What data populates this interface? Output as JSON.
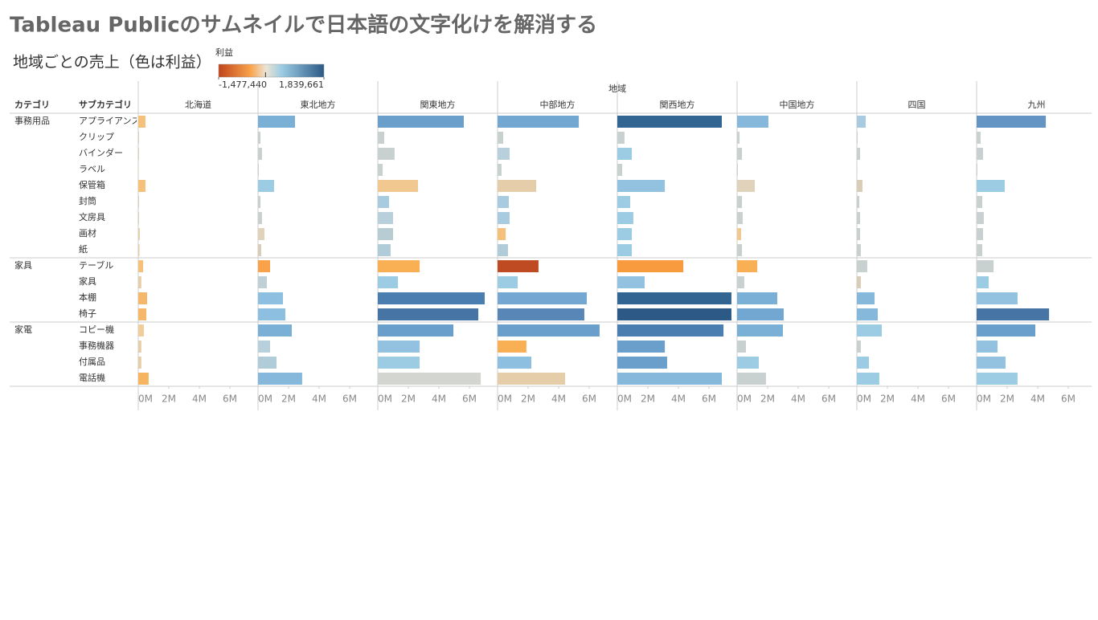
{
  "chart_data": {
    "type": "bar",
    "title": "Tableau Publicのサムネイルで日本語の文字化けを解消する",
    "subtitle": "地域ごとの売上（色は利益）",
    "column_header": "地域",
    "row_headers": [
      "カテゴリ",
      "サブカテゴリ"
    ],
    "color_legend": {
      "title": "利益",
      "range": [
        {
          "value": -1477440,
          "label": "-1,477,440"
        },
        {
          "value": 1839661,
          "label": "1,839,661"
        }
      ]
    },
    "category_groups": [
      {
        "name": "事務用品",
        "subcategories": [
          "アプライアンス",
          "クリップ",
          "バインダー",
          "ラベル",
          "保管箱",
          "封筒",
          "文房具",
          "画材",
          "紙"
        ]
      },
      {
        "name": "家具",
        "subcategories": [
          "テーブル",
          "家具",
          "本棚",
          "椅子"
        ]
      },
      {
        "name": "家電",
        "subcategories": [
          "コピー機",
          "事務機器",
          "付属品",
          "電話機"
        ]
      }
    ],
    "xlim": [
      0,
      7.84
    ],
    "xticks": [
      {
        "value": 0,
        "label": "0M"
      },
      {
        "value": 2,
        "label": "2M"
      },
      {
        "value": 4,
        "label": "4M"
      },
      {
        "value": 6,
        "label": "6M"
      }
    ],
    "series": [
      {
        "name": "北海道",
        "values": [
          0.47,
          0.05,
          0.05,
          0.03,
          0.47,
          0.05,
          0.05,
          0.1,
          0.08,
          0.32,
          0.2,
          0.58,
          0.53,
          0.37,
          0.2,
          0.2,
          0.68
        ],
        "colors": [
          "#f5c07a",
          "#d9cdb8",
          "#d9cdb8",
          "#d9cdb8",
          "#f5c07a",
          "#d9cdb8",
          "#d9cdb8",
          "#e6cda9",
          "#e6cda9",
          "#f5c07a",
          "#e6cda9",
          "#f5b86a",
          "#f5b86a",
          "#f0cd9a",
          "#e6cda9",
          "#e6cda9",
          "#f6b360"
        ]
      },
      {
        "name": "東北地方",
        "values": [
          2.42,
          0.16,
          0.26,
          0.05,
          1.05,
          0.16,
          0.26,
          0.42,
          0.21,
          0.79,
          0.58,
          1.63,
          1.79,
          2.21,
          0.79,
          1.21,
          2.89
        ],
        "colors": [
          "#7aafd6",
          "#c8d0d0",
          "#c8d0d0",
          "#c8d0d0",
          "#9ccbe4",
          "#c8d0d0",
          "#c8d0d0",
          "#e0d2bb",
          "#d9cdb8",
          "#f9a24a",
          "#bfcfd6",
          "#8dbfe0",
          "#8dbfe0",
          "#7aafd6",
          "#b8d0dc",
          "#b0ccd8",
          "#86b8dc"
        ]
      },
      {
        "name": "関東地方",
        "values": [
          5.63,
          0.42,
          1.1,
          0.32,
          2.63,
          0.74,
          1.0,
          1.0,
          0.84,
          2.74,
          1.32,
          7.0,
          6.58,
          4.95,
          2.74,
          2.74,
          6.74
        ],
        "colors": [
          "#6a9fcc",
          "#c8d0d0",
          "#c8d0d0",
          "#c8d0d0",
          "#f0c890",
          "#a9cbe0",
          "#b8d0dc",
          "#b8ccd4",
          "#b0ccd8",
          "#f9b055",
          "#9ccbe4",
          "#4a7eb0",
          "#4674a4",
          "#6a9fcc",
          "#92c2e0",
          "#9ccbe4",
          "#d3d6d0"
        ]
      },
      {
        "name": "中部地方",
        "values": [
          5.32,
          0.37,
          0.79,
          0.26,
          2.53,
          0.74,
          0.79,
          0.53,
          0.68,
          2.68,
          1.32,
          5.84,
          5.68,
          6.68,
          1.89,
          2.21,
          4.42
        ],
        "colors": [
          "#72a7d2",
          "#c8d0d0",
          "#b8d0dc",
          "#c8d0d0",
          "#e6cda9",
          "#a9cbe0",
          "#a9cbe0",
          "#f5c07a",
          "#b0ccd8",
          "#bf4b22",
          "#9ccbe4",
          "#74a8d3",
          "#5886b6",
          "#6a9fcc",
          "#f9b055",
          "#8dbfe0",
          "#e6cda9"
        ]
      },
      {
        "name": "関西地方",
        "values": [
          6.84,
          0.47,
          0.95,
          0.32,
          3.11,
          0.84,
          1.05,
          0.95,
          0.95,
          4.32,
          1.79,
          7.47,
          7.47,
          6.95,
          3.11,
          3.26,
          6.84
        ],
        "colors": [
          "#336593",
          "#c8d0d0",
          "#9ccbe4",
          "#c8d0d0",
          "#92c2e0",
          "#9ccbe4",
          "#9ccbe4",
          "#9ccbe4",
          "#9ccbe4",
          "#f89a3e",
          "#92c2e0",
          "#336593",
          "#2c5985",
          "#4a7eb0",
          "#6a9fcc",
          "#6a9fcc",
          "#86b8dc"
        ]
      },
      {
        "name": "中国地方",
        "values": [
          2.05,
          0.16,
          0.32,
          0.05,
          1.16,
          0.32,
          0.37,
          0.26,
          0.32,
          1.32,
          0.47,
          2.63,
          3.05,
          3.0,
          0.58,
          1.42,
          1.89
        ],
        "colors": [
          "#86b8dc",
          "#c8d0d0",
          "#c8d0d0",
          "#c8d0d0",
          "#e0d2bb",
          "#c8d0d0",
          "#c8d0d0",
          "#f0c890",
          "#c8d0d0",
          "#f9b055",
          "#c8d0d0",
          "#7aafd6",
          "#72a7d2",
          "#7aafd6",
          "#c8d0d0",
          "#9ccbe4",
          "#c8d0d0"
        ]
      },
      {
        "name": "四国",
        "values": [
          0.58,
          0.05,
          0.21,
          0.03,
          0.37,
          0.16,
          0.21,
          0.21,
          0.26,
          0.68,
          0.26,
          1.16,
          1.37,
          1.63,
          0.26,
          0.79,
          1.47
        ],
        "colors": [
          "#a9cbe0",
          "#c8d0d0",
          "#c8d0d0",
          "#c8d0d0",
          "#d9cdb8",
          "#c8d0d0",
          "#c8d0d0",
          "#c8d0d0",
          "#c8d0d0",
          "#c8d0d0",
          "#d9cdb8",
          "#86b8dc",
          "#86b8dc",
          "#9ccbe4",
          "#c8d0d0",
          "#9ccbe4",
          "#9ccbe4"
        ]
      },
      {
        "name": "九州",
        "values": [
          4.53,
          0.26,
          0.42,
          0.05,
          1.84,
          0.37,
          0.47,
          0.42,
          0.37,
          1.11,
          0.79,
          2.68,
          4.74,
          3.84,
          1.37,
          1.89,
          2.68
        ],
        "colors": [
          "#6394c4",
          "#c8d0d0",
          "#c8d0d0",
          "#c8d0d0",
          "#9ccbe4",
          "#c8d0d0",
          "#c8d0d0",
          "#c8d0d0",
          "#c8d0d0",
          "#c8d0d0",
          "#9ccbe4",
          "#92c2e0",
          "#4674a4",
          "#6a9fcc",
          "#92c2e0",
          "#92c2e0",
          "#9ccbe4"
        ]
      }
    ]
  }
}
